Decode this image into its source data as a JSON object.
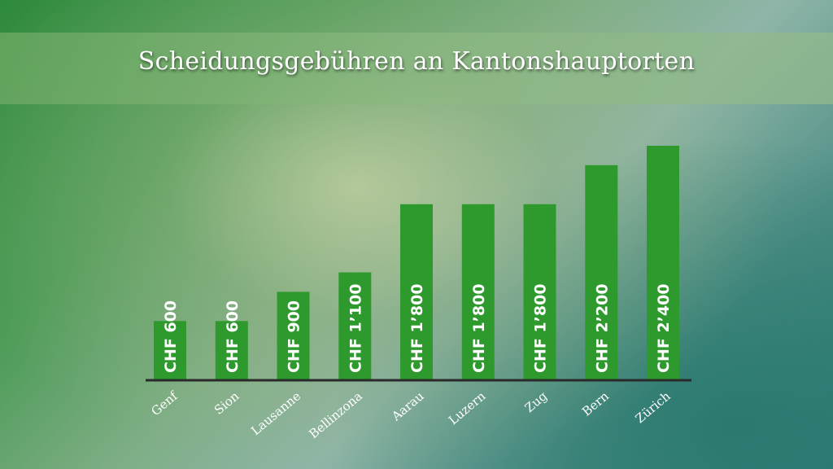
{
  "title": "Scheidungsgebühren an Kantonshauptorten",
  "colors": {
    "bar": "#2e9a2e",
    "axis": "#2a2a2a",
    "label": "#ffffff"
  },
  "chart_data": {
    "type": "bar",
    "title": "Scheidungsgebühren an Kantonshauptorten",
    "xlabel": "",
    "ylabel": "",
    "categories": [
      "Genf",
      "Sion",
      "Lausanne",
      "Bellinzona",
      "Aarau",
      "Luzern",
      "Zug",
      "Bern",
      "Zürich"
    ],
    "values": [
      600,
      600,
      900,
      1100,
      1800,
      1800,
      1800,
      2200,
      2400
    ],
    "data_labels": [
      "CHF 600",
      "CHF 600",
      "CHF 900",
      "CHF 1’100",
      "CHF 1’800",
      "CHF 1’800",
      "CHF 1’800",
      "CHF 2’200",
      "CHF 2’400"
    ],
    "ylim": [
      0,
      2400
    ],
    "grid": false,
    "legend": "none"
  }
}
